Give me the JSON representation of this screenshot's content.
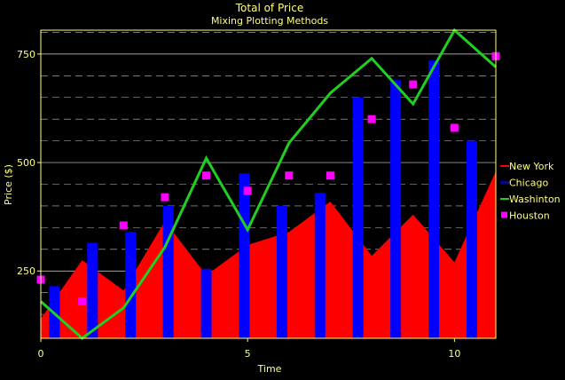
{
  "chart_data": {
    "type": "bar",
    "title": "Total of Price",
    "subtitle": "Mixing Plotting Methods",
    "xlabel": "Time",
    "ylabel": "Price ($)",
    "xlim": [
      0,
      11
    ],
    "ylim": [
      95,
      805
    ],
    "x_ticks": [
      0,
      5,
      10
    ],
    "y_ticks": [
      250,
      500,
      750
    ],
    "y_minor_ticks": [
      150,
      200,
      300,
      350,
      400,
      450,
      550,
      600,
      650,
      700,
      800
    ],
    "grid": true,
    "legend_position": "right",
    "series": [
      {
        "name": "New York",
        "kind": "area",
        "color": "#FF0000",
        "x": [
          0,
          1,
          2,
          3,
          4,
          5,
          6,
          7,
          8,
          9,
          10,
          11
        ],
        "values": [
          140,
          275,
          205,
          365,
          240,
          310,
          340,
          410,
          285,
          380,
          270,
          480
        ]
      },
      {
        "name": "Chicago",
        "kind": "bar",
        "color": "#0000FF",
        "x": [
          0.33,
          1.25,
          2.17,
          3.08,
          4.0,
          4.92,
          5.83,
          6.75,
          7.67,
          8.58,
          9.5,
          10.42
        ],
        "values": [
          215,
          315,
          340,
          400,
          255,
          475,
          400,
          430,
          650,
          690,
          735,
          550
        ]
      },
      {
        "name": "Washinton",
        "kind": "line",
        "color": "#20D020",
        "x": [
          0,
          1,
          2,
          3,
          4,
          5,
          6,
          7,
          8,
          9,
          10,
          11
        ],
        "values": [
          180,
          95,
          165,
          305,
          510,
          345,
          545,
          660,
          740,
          635,
          805,
          720
        ]
      },
      {
        "name": "Houston",
        "kind": "scatter",
        "color": "#FF00FF",
        "x": [
          0,
          1,
          2,
          3,
          4,
          5,
          6,
          7,
          8,
          9,
          10,
          11
        ],
        "values": [
          230,
          180,
          355,
          420,
          470,
          435,
          470,
          470,
          600,
          680,
          580,
          745
        ]
      }
    ]
  },
  "colors": {
    "background": "#000000",
    "axis": "#FFFF80",
    "grid": "#FFFFFF",
    "text": "#FFFF80"
  }
}
